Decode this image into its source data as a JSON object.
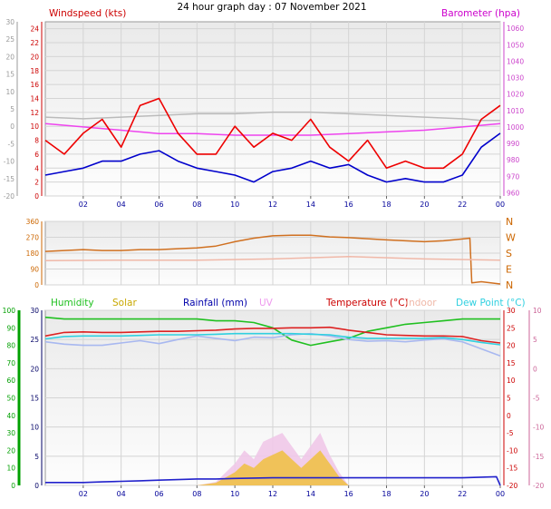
{
  "title": "24 hour graph day : 07 November 2021",
  "x_ticks": [
    "02",
    "04",
    "06",
    "08",
    "10",
    "12",
    "14",
    "16",
    "18",
    "20",
    "22",
    "00"
  ],
  "colors": {
    "wind_label": "#cc0000",
    "baro_label": "#cc00cc",
    "axis_red": "#cc0000",
    "axis_magenta": "#cc44cc",
    "axis_green": "#00a000",
    "axis_gray": "#999999",
    "axis_pink": "#cc6699",
    "x_tick": "#000099",
    "dir_label": "#cc6600",
    "humidity": "#20c020",
    "solar": "#c8a800",
    "rainfall": "#0000aa",
    "uv": "#ee99ee",
    "temperature": "#cc0000",
    "indoor": "#f0b8a8",
    "dewpoint": "#30d0e0",
    "feels": "#a8b8f0"
  },
  "chart_data": [
    {
      "type": "line",
      "title": "",
      "series": [
        {
          "name": "Windspeed (kts)",
          "axis": "left-wind",
          "x": [
            0,
            1,
            2,
            3,
            4,
            5,
            6,
            7,
            8,
            9,
            10,
            11,
            12,
            13,
            14,
            15,
            16,
            17,
            18,
            19,
            20,
            21,
            22,
            23,
            24
          ],
          "values": [
            8,
            6,
            9,
            11,
            7,
            13,
            14,
            9,
            6,
            6,
            10,
            7,
            9,
            8,
            11,
            7,
            5,
            8,
            4,
            5,
            4,
            4,
            6,
            11,
            13
          ]
        },
        {
          "name": "",
          "axis": "left-wind",
          "x": [
            0,
            1,
            2,
            3,
            4,
            5,
            6,
            7,
            8,
            9,
            10,
            11,
            12,
            13,
            14,
            15,
            16,
            17,
            18,
            19,
            20,
            21,
            22,
            23,
            24
          ],
          "values": [
            3,
            3.5,
            4,
            5,
            5,
            6,
            6.5,
            5,
            4,
            3.5,
            3,
            2,
            3.5,
            4,
            5,
            4,
            4.5,
            3,
            2,
            2.5,
            2,
            2,
            3,
            7,
            9
          ]
        },
        {
          "name": "Barometer (hpa)",
          "axis": "right-baro",
          "x": [
            0,
            2,
            4,
            6,
            8,
            10,
            12,
            14,
            16,
            18,
            20,
            22,
            23,
            24
          ],
          "values": [
            1002,
            1000,
            998,
            996,
            996,
            995,
            995,
            995,
            996,
            997,
            998,
            1000,
            1001,
            1002
          ]
        },
        {
          "name": "",
          "axis": "right-baro",
          "x": [
            0,
            2,
            4,
            6,
            8,
            10,
            12,
            13,
            14,
            16,
            18,
            20,
            22,
            23,
            24
          ],
          "values": [
            1006,
            1005,
            1006,
            1007,
            1008,
            1008,
            1009,
            1009,
            1009,
            1008,
            1007,
            1006,
            1005,
            1004,
            1004
          ]
        }
      ],
      "left_axes": [
        {
          "ticks": [
            -20,
            -15,
            -10,
            -5,
            0,
            5,
            10,
            15,
            20,
            25,
            30
          ]
        },
        {
          "ticks": [
            0,
            2,
            4,
            6,
            8,
            10,
            12,
            14,
            16,
            18,
            20,
            22,
            24
          ],
          "range": [
            0,
            25
          ]
        }
      ],
      "right_axis": {
        "ticks": [
          960,
          970,
          980,
          990,
          1000,
          1010,
          1020,
          1030,
          1040,
          1050,
          1060
        ],
        "range": [
          958,
          1064
        ]
      },
      "grid": true
    },
    {
      "type": "line",
      "title": "",
      "series": [
        {
          "name": "",
          "x": [
            0,
            1,
            2,
            3,
            4,
            5,
            6,
            7,
            8,
            9,
            10,
            11,
            12,
            13,
            14,
            15,
            16,
            17,
            18,
            19,
            20,
            21,
            22,
            22.4,
            22.5,
            23,
            24
          ],
          "values": [
            190,
            195,
            200,
            195,
            195,
            200,
            200,
            205,
            210,
            220,
            245,
            265,
            278,
            282,
            282,
            272,
            268,
            262,
            255,
            250,
            245,
            250,
            260,
            265,
            12,
            18,
            5
          ]
        }
      ],
      "left_axis": {
        "ticks": [
          0,
          90,
          180,
          270,
          360
        ],
        "range": [
          0,
          360
        ]
      },
      "right_labels": [
        "N",
        "W",
        "S",
        "E",
        "N"
      ],
      "grid": true
    },
    {
      "type": "line",
      "title": "",
      "legend": [
        "Humidity",
        "Solar",
        "Rainfall (mm)",
        "UV",
        "Temperature (°C)",
        "Indoor",
        "Dew Point (°C)"
      ],
      "series": [
        {
          "name": "Humidity",
          "axis": "hum",
          "x": [
            0,
            1,
            2,
            3,
            4,
            5,
            6,
            7,
            8,
            9,
            10,
            11,
            12,
            13,
            14,
            15,
            16,
            17,
            18,
            19,
            20,
            21,
            22,
            23,
            24
          ],
          "values": [
            96,
            95,
            95,
            95,
            95,
            95,
            95,
            95,
            95,
            94,
            94,
            93,
            90,
            83,
            80,
            82,
            84,
            88,
            90,
            92,
            93,
            94,
            95,
            95,
            95
          ]
        },
        {
          "name": "Indoor",
          "axis": "temp",
          "x": [
            0,
            4,
            8,
            12,
            16,
            20,
            24
          ],
          "values": [
            18.5,
            18.6,
            18.6,
            18.8,
            19.2,
            18.8,
            18.6
          ]
        },
        {
          "name": "Temperature (°C)",
          "axis": "temp",
          "x": [
            0,
            1,
            2,
            3,
            4,
            5,
            6,
            7,
            8,
            9,
            10,
            11,
            12,
            13,
            14,
            15,
            16,
            17,
            18,
            19,
            20,
            21,
            22,
            23,
            24
          ],
          "values": [
            5.6,
            6.2,
            6.3,
            6.2,
            6.2,
            6.3,
            6.4,
            6.4,
            6.5,
            6.6,
            6.8,
            6.9,
            6.9,
            7.0,
            7.0,
            7.1,
            6.6,
            6.2,
            5.8,
            5.7,
            5.6,
            5.6,
            5.5,
            4.8,
            4.4
          ]
        },
        {
          "name": "Dew Point (°C)",
          "axis": "temp",
          "x": [
            0,
            1,
            2,
            3,
            4,
            5,
            6,
            7,
            8,
            9,
            10,
            11,
            12,
            13,
            14,
            15,
            16,
            17,
            18,
            19,
            20,
            21,
            22,
            23,
            24
          ],
          "values": [
            5.1,
            5.5,
            5.6,
            5.6,
            5.6,
            5.7,
            5.8,
            5.8,
            5.8,
            5.9,
            6.0,
            6.0,
            6.0,
            6.0,
            5.9,
            5.8,
            5.4,
            5.2,
            5.2,
            5.2,
            5.2,
            5.3,
            5.0,
            4.5,
            4.1
          ]
        },
        {
          "name": "",
          "axis": "temp",
          "x": [
            0,
            1,
            2,
            3,
            4,
            5,
            6,
            7,
            8,
            9,
            10,
            11,
            12,
            13,
            14,
            15,
            16,
            17,
            18,
            19,
            20,
            21,
            22,
            23,
            24
          ],
          "values": [
            4.6,
            4.2,
            4.0,
            4.0,
            4.4,
            4.8,
            4.3,
            5.0,
            5.6,
            5.2,
            4.8,
            5.4,
            5.3,
            5.8,
            6.0,
            5.6,
            5.0,
            4.7,
            4.8,
            4.6,
            4.9,
            5.1,
            4.6,
            3.4,
            2.2
          ]
        },
        {
          "name": "Solar",
          "axis": "solar",
          "x": [
            8,
            9,
            10,
            10.5,
            11,
            11.5,
            12,
            12.5,
            13,
            13.5,
            14,
            14.5,
            15,
            15.5,
            16
          ],
          "values": [
            0,
            0.3,
            1.5,
            2.5,
            2,
            3,
            3.5,
            4,
            3,
            2,
            3,
            4,
            2.5,
            1,
            0
          ]
        },
        {
          "name": "UV",
          "axis": "solar",
          "x": [
            8,
            9,
            10,
            10.5,
            11,
            11.5,
            12,
            12.5,
            13,
            13.5,
            14,
            14.5,
            15,
            15.5,
            16
          ],
          "values": [
            0,
            0.4,
            2.5,
            4,
            3,
            5,
            5.5,
            6,
            4.5,
            3,
            4.5,
            6,
            3.5,
            1.5,
            0
          ]
        },
        {
          "name": "Rainfall (mm)",
          "axis": "rain",
          "x": [
            0,
            1,
            2,
            3,
            4,
            5,
            6,
            7,
            8,
            9,
            10,
            12,
            14,
            16,
            18,
            20,
            22,
            23.8,
            24
          ],
          "values": [
            0.5,
            0.5,
            0.5,
            0.6,
            0.7,
            0.8,
            0.9,
            1.0,
            1.1,
            1.1,
            1.2,
            1.3,
            1.3,
            1.3,
            1.3,
            1.3,
            1.3,
            1.5,
            0
          ]
        }
      ],
      "axes": {
        "hum": {
          "ticks": [
            0,
            10,
            20,
            30,
            40,
            50,
            60,
            70,
            80,
            90,
            100
          ],
          "range": [
            0,
            100
          ]
        },
        "rain": {
          "ticks": [
            0,
            5,
            10,
            15,
            20,
            25,
            30
          ],
          "range": [
            0,
            30
          ]
        },
        "temp_right": {
          "ticks": [
            -20,
            -15,
            -10,
            -5,
            0,
            5,
            10,
            15,
            20,
            25,
            30
          ]
        },
        "temp_outer": {
          "ticks": [
            -20,
            -15,
            -10,
            -5,
            0,
            5,
            10
          ],
          "range": [
            -20,
            10
          ]
        }
      },
      "grid": true
    }
  ]
}
